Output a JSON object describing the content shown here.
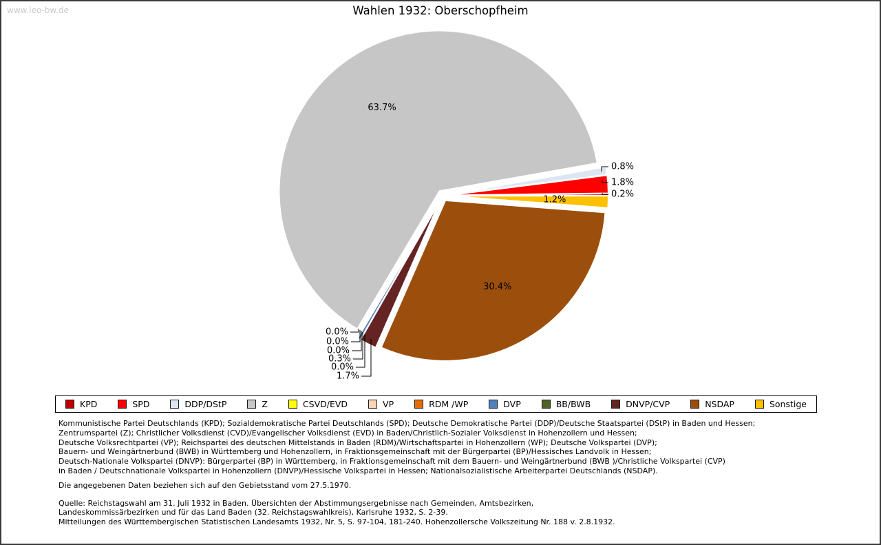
{
  "watermark": "www.leo-bw.de",
  "title": "Wahlen 1932: Oberschopfheim",
  "chart_data": {
    "type": "pie",
    "title": "Wahlen 1932: Oberschopfheim",
    "unit": "%",
    "direction": "counterclockwise",
    "start_angle_deg": 0,
    "legend_position": "bottom",
    "categories": [
      "KPD",
      "SPD",
      "DDP/DStP",
      "Z",
      "CSVD/EVD",
      "VP",
      "RDM /WP",
      "DVP",
      "BB/BWB",
      "DNVP/CVP",
      "NSDAP",
      "Sonstige"
    ],
    "values": [
      0.2,
      1.8,
      0.8,
      63.7,
      0.0,
      0.0,
      0.0,
      0.3,
      0.0,
      1.7,
      30.4,
      1.2
    ],
    "colors": [
      "#C00000",
      "#FE0000",
      "#DCE6F2",
      "#C6C6C6",
      "#FFFF00",
      "#FBD5B5",
      "#E36C09",
      "#4E81BD",
      "#4F6228",
      "#632423",
      "#9C4F0D",
      "#FFC000"
    ],
    "label_color": "#000000",
    "slice_border_color": "#ffffff"
  },
  "legend_note": "legend items are generated from chart_data.categories and chart_data.colors",
  "footer": {
    "party_legend_lines": [
      "Kommunistische Partei Deutschlands (KPD); Sozialdemokratische Partei Deutschlands (SPD); Deutsche Demokratische Partei (DDP)/Deutsche Staatspartei (DStP) in Baden und Hessen;",
      "Zentrumspartei (Z); Christlicher Volksdienst (CVD)/Evangelischer Volksdienst (EVD) in Baden/Christlich-Sozialer Volksdienst in Hohenzollern und Hessen;",
      "Deutsche Volksrechtpartei (VP); Reichspartei des deutschen Mittelstands in Baden (RDM)/Wirtschaftspartei in Hohenzollern (WP); Deutsche Volkspartei (DVP);",
      "Bauern- und Weingärtnerbund (BWB) in Württemberg und Hohenzollern, in Fraktionsgemeinschaft mit der Bürgerpartei (BP)/Hessisches Landvolk in Hessen;",
      "Deutsch-Nationale Volkspartei (DNVP): Bürgerpartei (BP) in Württemberg, in Fraktionsgemeinschaft mit dem Bauern- und Weingärtnerbund (BWB )/Christliche Volkspartei (CVP)",
      "in Baden / Deutschnationale Volkspartei in Hohenzollern (DNVP)/Hessische Volkspartei in Hessen; Nationalsozialistische Arbeiterpartei Deutschlands (NSDAP)."
    ],
    "note": "Die angegebenen Daten beziehen sich auf den Gebietsstand vom 27.5.1970.",
    "source_lines": [
      "Quelle: Reichstagswahl am 31. Juli 1932 in Baden. Übersichten der Abstimmungsergebnisse nach Gemeinden, Amtsbezirken,",
      "Landeskommissärbezirken und für das Land Baden (32. Reichstagswahlkreis), Karlsruhe 1932, S. 2-39.",
      "Mitteilungen des Württembergischen Statistischen Landesamts 1932, Nr. 5, S. 97-104, 181-240. Hohenzollersche Volkszeitung Nr. 188 v. 2.8.1932."
    ]
  }
}
